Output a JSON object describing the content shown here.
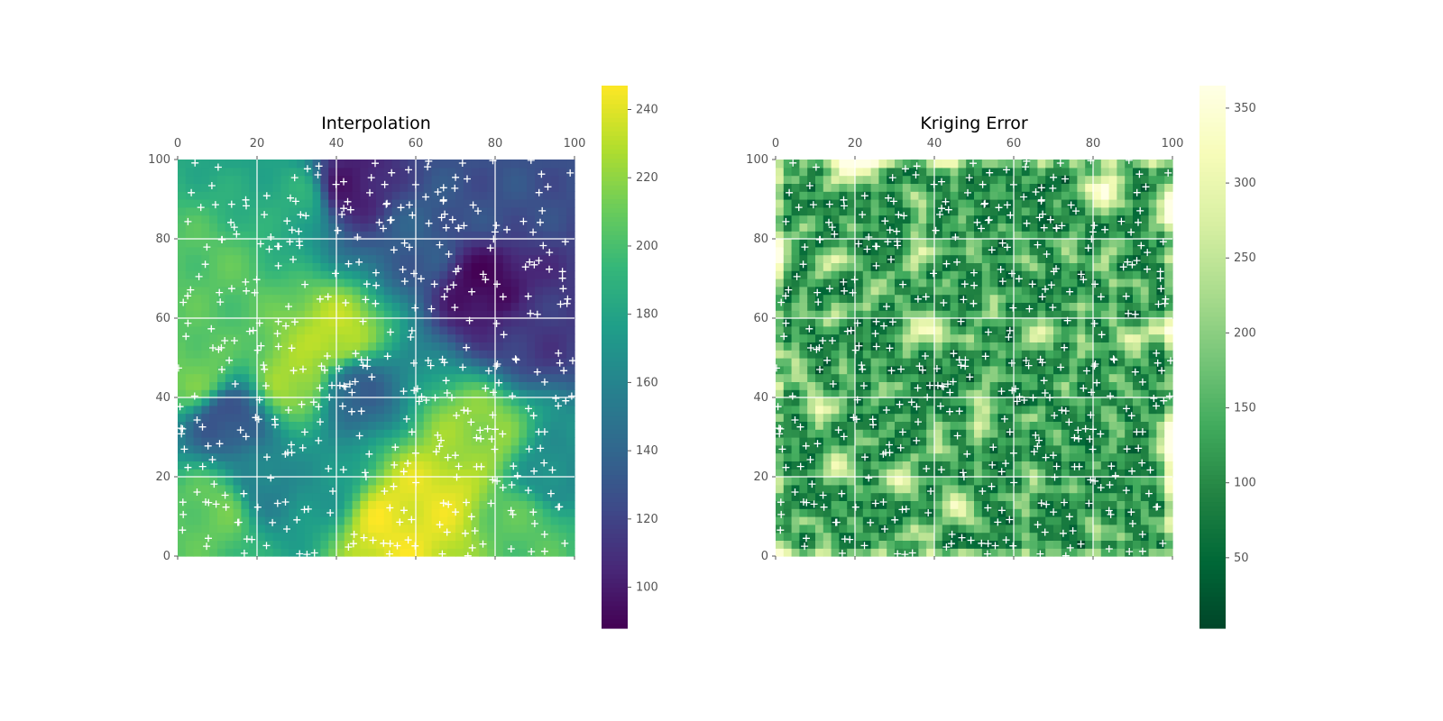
{
  "chart_data": [
    {
      "type": "heatmap",
      "title": "Interpolation",
      "xlim": [
        0,
        100
      ],
      "ylim": [
        0,
        100
      ],
      "xticks": [
        0,
        20,
        40,
        60,
        80,
        100
      ],
      "yticks": [
        0,
        20,
        40,
        60,
        80,
        100
      ],
      "grid": true,
      "colormap": "viridis",
      "colorbar": {
        "range": [
          88,
          247
        ],
        "ticks": [
          100,
          120,
          140,
          160,
          180,
          200,
          220,
          240
        ]
      },
      "markers": {
        "symbol": "+",
        "color": "#ffffff",
        "description": "sample point locations"
      },
      "field_hotspots": [
        {
          "x": 55,
          "y": 8,
          "value": 243
        },
        {
          "x": 65,
          "y": 15,
          "value": 240
        },
        {
          "x": 40,
          "y": 55,
          "value": 232
        },
        {
          "x": 30,
          "y": 45,
          "value": 226
        },
        {
          "x": 75,
          "y": 30,
          "value": 222
        },
        {
          "x": 88,
          "y": 8,
          "value": 205
        },
        {
          "x": 10,
          "y": 12,
          "value": 210
        },
        {
          "x": 5,
          "y": 45,
          "value": 212
        },
        {
          "x": 10,
          "y": 70,
          "value": 205
        },
        {
          "x": 30,
          "y": 90,
          "value": 188
        },
        {
          "x": 78,
          "y": 68,
          "value": 92
        },
        {
          "x": 43,
          "y": 93,
          "value": 100
        },
        {
          "x": 90,
          "y": 58,
          "value": 115
        },
        {
          "x": 12,
          "y": 35,
          "value": 128
        },
        {
          "x": 45,
          "y": 42,
          "value": 138
        },
        {
          "x": 82,
          "y": 90,
          "value": 128
        },
        {
          "x": 60,
          "y": 80,
          "value": 135
        },
        {
          "x": 22,
          "y": 18,
          "value": 158
        },
        {
          "x": 95,
          "y": 20,
          "value": 165
        },
        {
          "x": 35,
          "y": 20,
          "value": 170
        }
      ]
    },
    {
      "type": "heatmap",
      "title": "Kriging Error",
      "xlim": [
        0,
        100
      ],
      "ylim": [
        0,
        100
      ],
      "xticks": [
        0,
        20,
        40,
        60,
        80,
        100
      ],
      "yticks": [
        0,
        20,
        40,
        60,
        80,
        100
      ],
      "grid": true,
      "colormap": "YlGn_r",
      "colorbar": {
        "range": [
          3,
          365
        ],
        "ticks": [
          50,
          100,
          150,
          200,
          250,
          300,
          350
        ]
      },
      "markers": {
        "symbol": "+",
        "color": "#ffffff",
        "description": "sample point locations"
      },
      "error_range_observed": [
        5,
        365
      ]
    }
  ]
}
